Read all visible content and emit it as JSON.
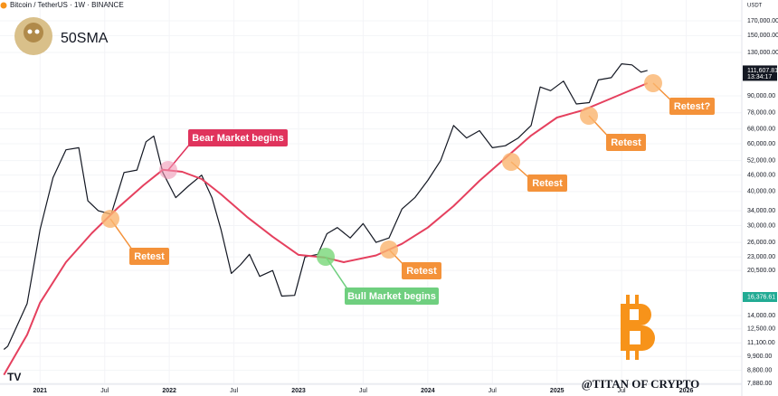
{
  "header": {
    "title": "Bitcoin / TetherUS · 1W · BINANCE",
    "indicator": "50SMA",
    "currency": "USDT",
    "watermark": "@TITAN OF CRYPTO"
  },
  "chart_data": {
    "type": "line",
    "log_scale": true,
    "grid": true,
    "xlim": [
      2020.69,
      2026.43
    ],
    "ylim": [
      7080,
      202700
    ],
    "xticks": [
      {
        "value": 2021,
        "label": "2021"
      },
      {
        "value": 2021.5,
        "label": "Jul"
      },
      {
        "value": 2022,
        "label": "2022"
      },
      {
        "value": 2022.5,
        "label": "Jul"
      },
      {
        "value": 2023,
        "label": "2023"
      },
      {
        "value": 2023.5,
        "label": "Jul"
      },
      {
        "value": 2024,
        "label": "2024"
      },
      {
        "value": 2024.5,
        "label": "Jul"
      },
      {
        "value": 2025,
        "label": "2025"
      },
      {
        "value": 2025.5,
        "label": "Jul"
      },
      {
        "value": 2026,
        "label": "2026"
      }
    ],
    "yticks": [
      {
        "value": 170000,
        "label": "170,000.00"
      },
      {
        "value": 150000,
        "label": "150,000.00"
      },
      {
        "value": 130000,
        "label": "130,000.00"
      },
      {
        "value": 90000,
        "label": "90,000.00"
      },
      {
        "value": 78000,
        "label": "78,000.00"
      },
      {
        "value": 68000,
        "label": "68,000.00"
      },
      {
        "value": 60000,
        "label": "60,000.00"
      },
      {
        "value": 52000,
        "label": "52,000.00"
      },
      {
        "value": 46000,
        "label": "46,000.00"
      },
      {
        "value": 40000,
        "label": "40,000.00"
      },
      {
        "value": 34000,
        "label": "34,000.00"
      },
      {
        "value": 30000,
        "label": "30,000.00"
      },
      {
        "value": 26000,
        "label": "26,000.00"
      },
      {
        "value": 23000,
        "label": "23,000.00"
      },
      {
        "value": 20500,
        "label": "20,500.00"
      },
      {
        "value": 14000,
        "label": "14,000.00"
      },
      {
        "value": 12500,
        "label": "12,500.00"
      },
      {
        "value": 11100,
        "label": "11,100.00"
      },
      {
        "value": 9900,
        "label": "9,900.00"
      },
      {
        "value": 8800,
        "label": "8,800.00"
      },
      {
        "value": 7880,
        "label": "7,880.00"
      }
    ],
    "price_tags": [
      {
        "value": 111607.81,
        "label": "111,607.81",
        "time": "13:34:17",
        "color": "#131722"
      },
      {
        "value": 16376.61,
        "label": "16,376.61",
        "color": "#22ab94"
      }
    ],
    "series": [
      {
        "color": "#131722",
        "x": [
          2020.72,
          2020.75,
          2020.9,
          2021.0,
          2021.1,
          2021.2,
          2021.3,
          2021.37,
          2021.45,
          2021.55,
          2021.65,
          2021.75,
          2021.82,
          2021.88,
          2021.95,
          2022.05,
          2022.15,
          2022.25,
          2022.33,
          2022.4,
          2022.48,
          2022.55,
          2022.62,
          2022.7,
          2022.8,
          2022.87,
          2022.97,
          2023.05,
          2023.15,
          2023.22,
          2023.3,
          2023.4,
          2023.5,
          2023.6,
          2023.7,
          2023.8,
          2023.9,
          2024.0,
          2024.1,
          2024.2,
          2024.3,
          2024.4,
          2024.5,
          2024.6,
          2024.7,
          2024.8,
          2024.87,
          2024.95,
          2025.05,
          2025.15,
          2025.25,
          2025.32,
          2025.42,
          2025.5,
          2025.58,
          2025.65,
          2025.7
        ],
        "values": [
          10500,
          10800,
          15500,
          29000,
          45000,
          57000,
          58000,
          37000,
          34000,
          33000,
          47000,
          48000,
          61000,
          64000,
          47000,
          38000,
          42000,
          46000,
          38000,
          29000,
          20000,
          21500,
          23500,
          19500,
          20500,
          16500,
          16600,
          23000,
          23500,
          28000,
          29500,
          27000,
          30500,
          26000,
          27000,
          34500,
          38000,
          44000,
          52000,
          70000,
          63000,
          67000,
          58000,
          59000,
          63000,
          70000,
          97000,
          94000,
          102000,
          84000,
          85000,
          103000,
          105000,
          118000,
          117000,
          110000,
          111607.81
        ]
      },
      {
        "name": "50SMA",
        "color": "#e5405e",
        "x": [
          2020.72,
          2020.9,
          2021.0,
          2021.2,
          2021.4,
          2021.6,
          2021.8,
          2021.95,
          2022.1,
          2022.25,
          2022.4,
          2022.6,
          2022.8,
          2023.0,
          2023.2,
          2023.35,
          2023.6,
          2023.8,
          2024.0,
          2024.2,
          2024.4,
          2024.6,
          2024.8,
          2025.0,
          2025.2,
          2025.4,
          2025.6,
          2025.7
        ],
        "values": [
          8470,
          11900,
          15600,
          22000,
          28100,
          34800,
          42200,
          48100,
          47300,
          44500,
          39100,
          32300,
          27300,
          23400,
          22900,
          22000,
          23300,
          25700,
          29500,
          35400,
          43800,
          53100,
          64300,
          74900,
          79700,
          87300,
          95700,
          100200
        ]
      }
    ],
    "annotations": [
      "Bear Market begins",
      "Bull Market begins",
      "Retest",
      "Retest",
      "Retest",
      "Retest",
      "Retest?"
    ]
  }
}
